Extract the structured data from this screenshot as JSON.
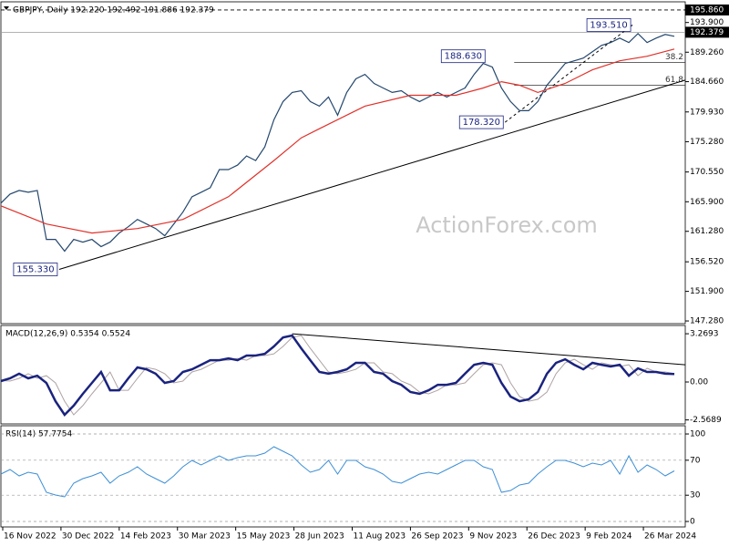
{
  "chart_data": [
    {
      "type": "line",
      "title": "GBPJPY, Daily  192.220 192.492 191.886 192.379",
      "watermark": "ActionForex.com",
      "xlim": [
        0,
        376
      ],
      "ylim": [
        146.86,
        197.13
      ],
      "x": [
        0,
        5,
        10,
        15,
        20,
        25,
        30,
        35,
        40,
        45,
        50,
        55,
        60,
        65,
        70,
        75,
        80,
        85,
        90,
        95,
        100,
        105,
        110,
        115,
        120,
        125,
        130,
        135,
        140,
        145,
        150,
        155,
        160,
        165,
        170,
        175,
        180,
        185,
        190,
        195,
        200,
        205,
        210,
        215,
        220,
        225,
        230,
        235,
        240,
        245,
        250,
        255,
        260,
        265,
        270,
        275,
        280,
        285,
        290,
        295,
        300,
        305,
        310,
        315,
        320,
        325,
        330,
        335,
        340,
        345,
        350,
        355,
        360,
        365,
        370
      ],
      "series": [
        {
          "color": "#24476e",
          "values": [
            165.69,
            167.1,
            167.67,
            167.38,
            167.67,
            160.02,
            160.02,
            158.18,
            160.02,
            159.59,
            160.02,
            158.89,
            159.59,
            161.01,
            162.0,
            163.14,
            162.43,
            161.72,
            160.59,
            162.43,
            164.27,
            166.68,
            167.38,
            168.09,
            170.93,
            170.93,
            171.63,
            173.05,
            172.34,
            174.47,
            178.72,
            181.55,
            182.97,
            183.25,
            181.55,
            180.84,
            182.26,
            179.42,
            182.97,
            185.09,
            185.8,
            184.38,
            183.67,
            182.97,
            183.25,
            182.26,
            181.55,
            182.26,
            182.97,
            182.26,
            182.97,
            183.67,
            185.8,
            187.5,
            186.93,
            183.67,
            181.55,
            180.13,
            180.13,
            181.55,
            184.1,
            185.8,
            187.5,
            187.92,
            188.35,
            189.34,
            190.33,
            190.76,
            191.46,
            190.76,
            192.17,
            190.76,
            191.46,
            192.03,
            191.75
          ]
        },
        {
          "color": "#e0312a",
          "x": [
            0,
            25,
            50,
            75,
            100,
            125,
            150,
            165,
            175,
            200,
            225,
            250,
            265,
            275,
            285,
            295,
            310,
            325,
            340,
            355,
            370
          ],
          "values": [
            165.26,
            162.43,
            161.01,
            161.72,
            163.14,
            166.68,
            172.34,
            175.88,
            177.3,
            180.84,
            182.54,
            182.54,
            183.67,
            184.66,
            184.1,
            182.97,
            184.38,
            186.51,
            187.92,
            188.63,
            189.76
          ]
        }
      ],
      "yticks": [
        {
          "value": 147.28,
          "label": "147.280"
        },
        {
          "value": 151.9,
          "label": "151.900"
        },
        {
          "value": 156.52,
          "label": "156.520"
        },
        {
          "value": 161.28,
          "label": "161.280"
        },
        {
          "value": 165.9,
          "label": "165.900"
        },
        {
          "value": 170.55,
          "label": "170.550"
        },
        {
          "value": 175.28,
          "label": "175.280"
        },
        {
          "value": 179.93,
          "label": "179.930"
        },
        {
          "value": 184.66,
          "label": "184.660"
        },
        {
          "value": 189.26,
          "label": "189.260"
        },
        {
          "value": 193.9,
          "label": "193.900"
        }
      ],
      "levels": [
        {
          "value": 195.86,
          "label": "195.860"
        }
      ],
      "last_price": {
        "value": 192.379,
        "label": "192.379"
      },
      "price_labels": [
        {
          "x": 347,
          "value": 193.51,
          "label": "193.510"
        },
        {
          "x": 267,
          "value": 188.63,
          "label": "188.630"
        },
        {
          "x": 277,
          "value": 178.32,
          "label": "178.320"
        },
        {
          "x": 32,
          "value": 155.33,
          "label": "155.330"
        }
      ],
      "fibs": [
        {
          "x": 282,
          "ratio": 38.2,
          "price": 187.64
        },
        {
          "x": 282,
          "ratio": 61.8,
          "price": 184.1
        }
      ],
      "trendlines": [
        {
          "x": [
            32,
            376
          ],
          "values": [
            155.33,
            184.9
          ]
        },
        {
          "x": [
            277,
            347
          ],
          "values": [
            178.32,
            193.51
          ],
          "dashed": true
        }
      ],
      "grid": false
    },
    {
      "type": "line",
      "title": "MACD(12,26,9) 0.5354 0.5524",
      "xlim": [
        0,
        376
      ],
      "ylim": [
        -2.84,
        3.83
      ],
      "x": [
        0,
        5,
        10,
        15,
        20,
        25,
        30,
        35,
        40,
        45,
        50,
        55,
        60,
        65,
        70,
        75,
        80,
        85,
        90,
        95,
        100,
        105,
        110,
        115,
        120,
        125,
        130,
        135,
        140,
        145,
        150,
        155,
        160,
        165,
        170,
        175,
        180,
        185,
        190,
        195,
        200,
        205,
        210,
        215,
        220,
        225,
        230,
        235,
        240,
        245,
        250,
        255,
        260,
        265,
        270,
        275,
        280,
        285,
        290,
        295,
        300,
        305,
        310,
        315,
        320,
        325,
        330,
        335,
        340,
        345,
        350,
        355,
        360,
        365,
        370
      ],
      "series": [
        {
          "color": "#b0a3a3",
          "width": 1,
          "values": [
            0.1,
            0.06,
            0.25,
            0.56,
            0.25,
            0.43,
            -0.06,
            -1.3,
            -2.22,
            -1.6,
            -0.8,
            -0.06,
            0.68,
            -0.56,
            -0.56,
            0.25,
            0.99,
            0.86,
            0.56,
            -0.06,
            0.06,
            0.68,
            0.86,
            1.17,
            1.48,
            1.48,
            1.6,
            1.48,
            1.79,
            1.79,
            1.91,
            2.41,
            3.02,
            3.15,
            2.28,
            1.48,
            0.68,
            0.56,
            0.68,
            0.86,
            1.3,
            1.3,
            0.68,
            0.56,
            0.06,
            -0.19,
            -0.68,
            -0.8,
            -0.56,
            -0.19,
            -0.19,
            -0.06,
            0.56,
            1.17,
            1.3,
            1.17,
            -0.06,
            -0.99,
            -1.3,
            -1.17,
            -0.68,
            0.56,
            1.3,
            1.54,
            1.17,
            0.86,
            1.3,
            1.17,
            1.05,
            1.17,
            0.43,
            0.93,
            0.68,
            0.68,
            0.56
          ]
        },
        {
          "color": "#1a237e",
          "width": 2.5,
          "values": [
            0.06,
            0.25,
            0.56,
            0.25,
            0.43,
            -0.06,
            -1.3,
            -2.22,
            -1.6,
            -0.8,
            -0.06,
            0.68,
            -0.56,
            -0.56,
            0.25,
            0.99,
            0.86,
            0.56,
            -0.06,
            0.06,
            0.68,
            0.86,
            1.17,
            1.48,
            1.48,
            1.6,
            1.48,
            1.79,
            1.79,
            1.91,
            2.41,
            3.02,
            3.15,
            2.28,
            1.48,
            0.68,
            0.56,
            0.68,
            0.86,
            1.3,
            1.3,
            0.68,
            0.56,
            0.06,
            -0.19,
            -0.68,
            -0.8,
            -0.56,
            -0.19,
            -0.19,
            -0.06,
            0.56,
            1.17,
            1.3,
            1.17,
            -0.06,
            -0.99,
            -1.3,
            -1.17,
            -0.68,
            0.56,
            1.3,
            1.54,
            1.17,
            0.86,
            1.3,
            1.17,
            1.05,
            1.17,
            0.43,
            0.93,
            0.68,
            0.68,
            0.56,
            0.54
          ]
        }
      ],
      "yticks": [
        -2.5689,
        {
          "value": 0,
          "label": "0.00"
        },
        3.2693
      ],
      "trendlines": [
        {
          "x": [
            160,
            376
          ],
          "values": [
            3.27,
            1.17
          ]
        }
      ],
      "grid": false
    },
    {
      "type": "line",
      "title": "RSI(14) 57.7754",
      "xlim": [
        0,
        376
      ],
      "ylim": [
        -6.25,
        109.4
      ],
      "x": [
        0,
        5,
        10,
        15,
        20,
        25,
        30,
        35,
        40,
        45,
        50,
        55,
        60,
        65,
        70,
        75,
        80,
        85,
        90,
        95,
        100,
        105,
        110,
        115,
        120,
        125,
        130,
        135,
        140,
        145,
        150,
        155,
        160,
        165,
        170,
        175,
        180,
        185,
        190,
        195,
        200,
        205,
        210,
        215,
        220,
        225,
        230,
        235,
        240,
        245,
        250,
        255,
        260,
        265,
        270,
        275,
        280,
        285,
        290,
        295,
        300,
        305,
        310,
        315,
        320,
        325,
        330,
        335,
        340,
        345,
        350,
        355,
        360,
        365,
        370
      ],
      "series": [
        {
          "color": "#3d8fd6",
          "width": 1,
          "values": [
            54.2,
            59.4,
            52.1,
            56.3,
            54.2,
            33.3,
            30.2,
            28.1,
            43.8,
            49.0,
            52.1,
            56.3,
            43.8,
            52.1,
            56.3,
            62.5,
            54.2,
            49.0,
            43.8,
            52.1,
            62.5,
            69.8,
            64.6,
            69.8,
            75.0,
            69.8,
            72.9,
            75.0,
            75.0,
            78.1,
            85.4,
            80.2,
            75.0,
            64.6,
            56.3,
            59.4,
            69.8,
            54.2,
            69.8,
            69.8,
            62.5,
            59.4,
            54.2,
            45.8,
            43.8,
            49.0,
            54.2,
            56.3,
            54.2,
            59.4,
            64.6,
            69.8,
            69.8,
            62.5,
            59.4,
            33.3,
            35.4,
            41.7,
            43.8,
            54.2,
            62.5,
            69.8,
            69.8,
            66.7,
            62.5,
            66.7,
            64.6,
            69.8,
            54.2,
            75.0,
            56.3,
            64.6,
            59.4,
            52.1,
            57.8
          ]
        }
      ],
      "yticks": [
        0,
        30,
        70,
        100
      ],
      "grid": true,
      "xticks": [
        {
          "value": 1,
          "label": "16 Nov 2022"
        },
        {
          "value": 33,
          "label": "30 Dec 2022"
        },
        {
          "value": 65,
          "label": "14 Feb 2023"
        },
        {
          "value": 97,
          "label": "30 Mar 2023"
        },
        {
          "value": 129,
          "label": "15 May 2023"
        },
        {
          "value": 161,
          "label": "28 Jun 2023"
        },
        {
          "value": 193,
          "label": "11 Aug 2023"
        },
        {
          "value": 225,
          "label": "26 Sep 2023"
        },
        {
          "value": 257,
          "label": "9 Nov 2023"
        },
        {
          "value": 289,
          "label": "26 Dec 2023"
        },
        {
          "value": 321,
          "label": "9 Feb 2024"
        },
        {
          "value": 353,
          "label": "26 Mar 2024"
        }
      ]
    }
  ]
}
